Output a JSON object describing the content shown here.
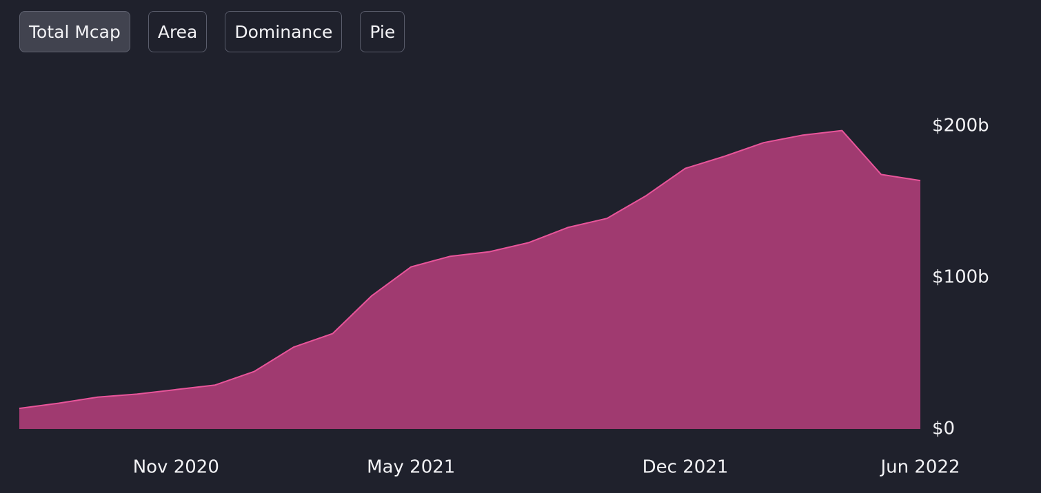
{
  "tabs": [
    {
      "label": "Total Mcap",
      "active": true
    },
    {
      "label": "Area",
      "active": false
    },
    {
      "label": "Dominance",
      "active": false
    },
    {
      "label": "Pie",
      "active": false
    }
  ],
  "chart_data": {
    "type": "area",
    "x": [
      "2020-07",
      "2020-08",
      "2020-09",
      "2020-10",
      "2020-11",
      "2020-12",
      "2021-01",
      "2021-02",
      "2021-03",
      "2021-04",
      "2021-05",
      "2021-06",
      "2021-07",
      "2021-08",
      "2021-09",
      "2021-10",
      "2021-11",
      "2021-12",
      "2022-01",
      "2022-02",
      "2022-03",
      "2022-04",
      "2022-05",
      "2022-06"
    ],
    "values": [
      13.6,
      17,
      21,
      23,
      26,
      29,
      38,
      54,
      63,
      88,
      107,
      114,
      117,
      123,
      133,
      139,
      154,
      172,
      180,
      189,
      194,
      197,
      168,
      164
    ],
    "color": "#a03a70",
    "line_color": "#e8559a",
    "xlim": [
      "2020-07",
      "2022-06"
    ],
    "xticks": [
      {
        "value": "2020-11",
        "label": "Nov 2020"
      },
      {
        "value": "2021-05",
        "label": "May 2021"
      },
      {
        "value": "2021-12",
        "label": "Dec 2021"
      },
      {
        "value": "2022-06",
        "label": "Jun 2022"
      }
    ],
    "ylim": [
      0,
      200
    ],
    "yticks": [
      {
        "value": 0,
        "label": "$0"
      },
      {
        "value": 100,
        "label": "$100b"
      },
      {
        "value": 200,
        "label": "$200b"
      }
    ]
  }
}
